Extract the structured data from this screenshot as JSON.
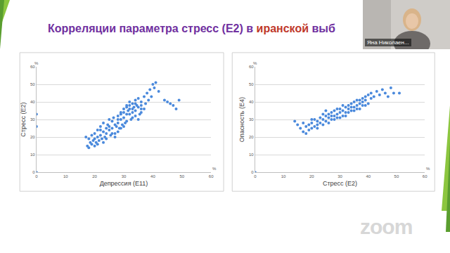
{
  "slide_title": [
    {
      "text": "Корреляции параметра стресс (E2) в ",
      "color": "#7030a0"
    },
    {
      "text": "иранской",
      "color": "#c0392b"
    },
    {
      "text": " выб",
      "color": "#7030a0"
    }
  ],
  "speaker": "Яна Николаен...",
  "watermark": "zoom",
  "chart_data": [
    {
      "type": "scatter",
      "xlabel": "Депрессия (E11)",
      "ylabel": "Стресс (E2)",
      "x": [
        17,
        17.5,
        18,
        18,
        18.5,
        19,
        19,
        19.5,
        20,
        20,
        20.5,
        21,
        21,
        21.5,
        22,
        22,
        22.5,
        23,
        23,
        23.5,
        24,
        24,
        24.5,
        25,
        25,
        25.5,
        26,
        26,
        26.5,
        27,
        27,
        27.5,
        28,
        28,
        28.5,
        29,
        29,
        29.5,
        30,
        30,
        30.5,
        31,
        31,
        31.5,
        32,
        32,
        32.5,
        33,
        33,
        33.5,
        34,
        34,
        34.5,
        35,
        35,
        35.5,
        36,
        36,
        37,
        37.5,
        38,
        38.5,
        39,
        39.5,
        40,
        40.5,
        41,
        42,
        44,
        45,
        46,
        47,
        48,
        49,
        22,
        23,
        24,
        25,
        26,
        20,
        21,
        28,
        30,
        31,
        32,
        33,
        34,
        29,
        35,
        36,
        27,
        33,
        34,
        36,
        37,
        30,
        31,
        32,
        29,
        28,
        0,
        0,
        0
      ],
      "values": [
        20,
        15,
        14,
        19,
        17,
        21,
        16,
        18,
        22,
        19,
        17,
        24,
        20,
        18,
        26,
        21,
        19,
        28,
        23,
        20,
        25,
        22,
        27,
        30,
        24,
        21,
        29,
        25,
        31,
        27,
        22,
        26,
        32,
        28,
        25,
        34,
        30,
        27,
        36,
        31,
        28,
        38,
        33,
        35,
        40,
        36,
        30,
        39,
        34,
        37,
        41,
        35,
        38,
        42,
        37,
        33,
        40,
        36,
        43,
        39,
        45,
        41,
        47,
        43,
        50,
        48,
        51,
        46,
        41,
        40,
        39,
        38,
        36,
        41,
        24,
        17,
        19,
        26,
        22,
        15,
        16,
        23,
        26,
        29,
        33,
        31,
        32,
        25,
        30,
        34,
        20,
        36,
        39,
        38,
        36,
        34,
        37,
        38,
        33,
        30,
        33,
        26,
        0
      ],
      "xlim": [
        0,
        60
      ],
      "ylim": [
        0,
        60
      ],
      "xticks": [
        0,
        10,
        20,
        30,
        40,
        50,
        60
      ],
      "yticks": [
        0,
        10,
        20,
        30,
        40,
        50,
        60
      ],
      "grid": "y",
      "color": "#4a89dc",
      "marker": "circle",
      "annotations": [
        "%",
        "%"
      ]
    },
    {
      "type": "scatter",
      "xlabel": "Стресс (E2)",
      "ylabel": "Опасность (E4)",
      "x": [
        14,
        15,
        16,
        17,
        17,
        18,
        18,
        19,
        19,
        20,
        20,
        21,
        21,
        22,
        22,
        23,
        23,
        24,
        24,
        25,
        25,
        26,
        26,
        27,
        27,
        28,
        28,
        29,
        29,
        30,
        30,
        31,
        31,
        32,
        32,
        33,
        33,
        34,
        34,
        35,
        35,
        36,
        36,
        37,
        37,
        38,
        38,
        39,
        39,
        40,
        40,
        41,
        41,
        42,
        43,
        44,
        45,
        46,
        47,
        48,
        49,
        51,
        24,
        25,
        26,
        28,
        29,
        30,
        31,
        32,
        33,
        34,
        35,
        36,
        37,
        38,
        39,
        27,
        22,
        20,
        0
      ],
      "values": [
        29,
        27,
        25,
        23,
        28,
        26,
        22,
        27,
        24,
        28,
        25,
        30,
        26,
        27,
        29,
        31,
        28,
        30,
        27,
        32,
        29,
        31,
        33,
        30,
        34,
        32,
        35,
        33,
        31,
        36,
        34,
        35,
        32,
        37,
        34,
        38,
        36,
        39,
        35,
        37,
        40,
        38,
        41,
        39,
        36,
        42,
        40,
        41,
        43,
        44,
        39,
        45,
        42,
        43,
        46,
        44,
        47,
        45,
        43,
        48,
        45,
        45,
        33,
        35,
        28,
        30,
        36,
        31,
        38,
        32,
        34,
        37,
        35,
        36,
        41,
        38,
        38,
        32,
        25,
        30,
        0
      ],
      "xlim": [
        0,
        60
      ],
      "ylim": [
        0,
        60
      ],
      "xticks": [
        0,
        10,
        20,
        30,
        40,
        50,
        60
      ],
      "yticks": [
        0,
        10,
        20,
        30,
        40,
        50,
        60
      ],
      "grid": "y",
      "color": "#4a89dc",
      "marker": "circle",
      "annotations": [
        "%",
        "%"
      ]
    }
  ]
}
